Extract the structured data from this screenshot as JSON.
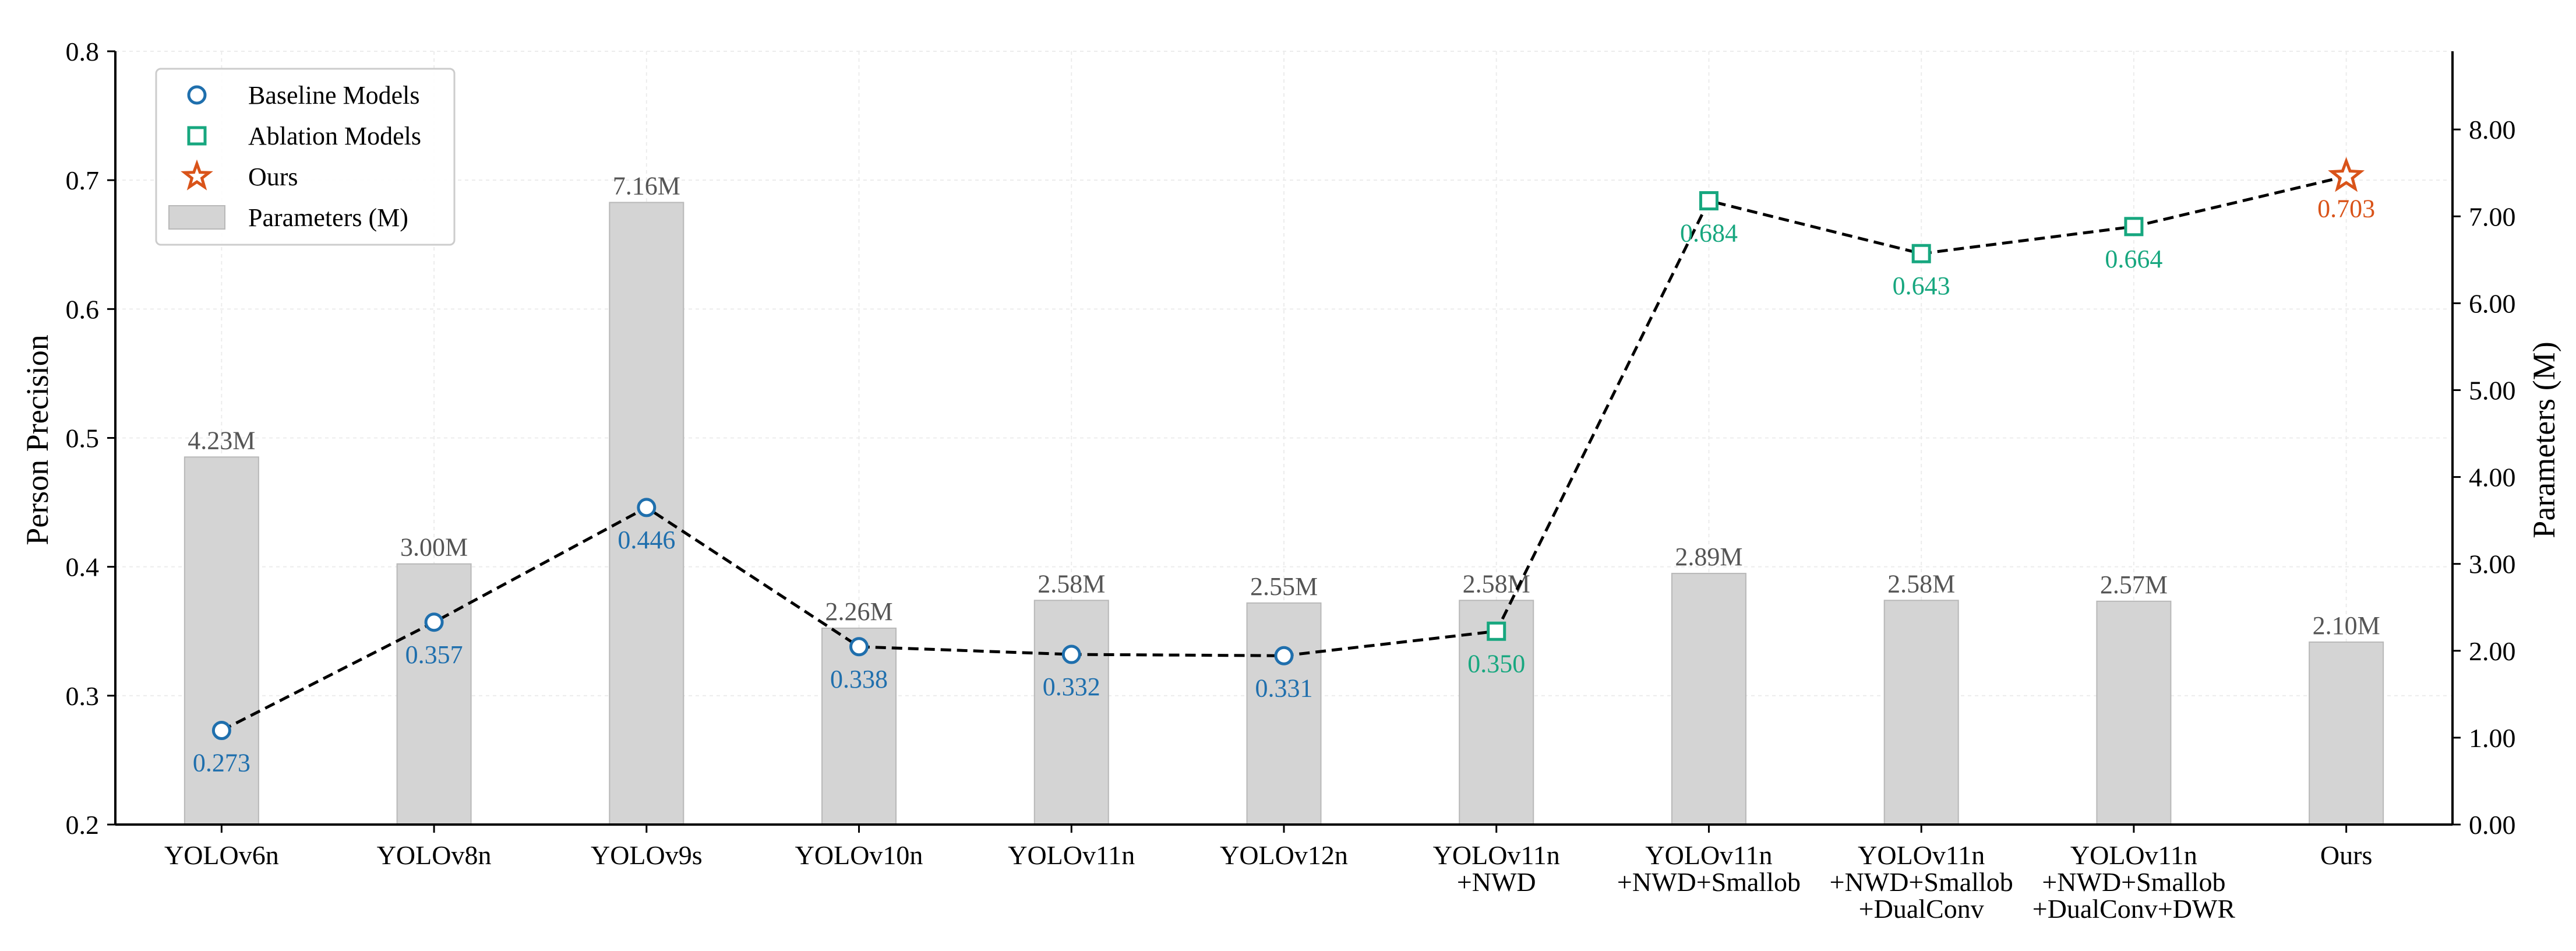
{
  "chart_data": {
    "type": "bar+line",
    "categories": [
      [
        "YOLOv6n"
      ],
      [
        "YOLOv8n"
      ],
      [
        "YOLOv9s"
      ],
      [
        "YOLOv10n"
      ],
      [
        "YOLOv11n"
      ],
      [
        "YOLOv12n"
      ],
      [
        "YOLOv11n",
        "+NWD"
      ],
      [
        "YOLOv11n",
        "+NWD+Smallob"
      ],
      [
        "YOLOv11n",
        "+NWD+Smallob",
        "+DualConv"
      ],
      [
        "YOLOv11n",
        "+NWD+Smallob",
        "+DualConv+DWR"
      ],
      [
        "Ours"
      ]
    ],
    "precision": {
      "values": [
        0.273,
        0.357,
        0.446,
        0.338,
        0.332,
        0.331,
        0.35,
        0.684,
        0.643,
        0.664,
        0.703
      ],
      "labels": [
        "0.273",
        "0.357",
        "0.446",
        "0.338",
        "0.332",
        "0.331",
        "0.350",
        "0.684",
        "0.643",
        "0.664",
        "0.703"
      ],
      "groups": [
        "baseline",
        "baseline",
        "baseline",
        "baseline",
        "baseline",
        "baseline",
        "ablation",
        "ablation",
        "ablation",
        "ablation",
        "ours"
      ]
    },
    "parameters": {
      "values": [
        4.23,
        3.0,
        7.16,
        2.26,
        2.58,
        2.55,
        2.58,
        2.89,
        2.58,
        2.57,
        2.1
      ],
      "labels": [
        "4.23M",
        "3.00M",
        "7.16M",
        "2.26M",
        "2.58M",
        "2.55M",
        "2.58M",
        "2.89M",
        "2.58M",
        "2.57M",
        "2.10M"
      ]
    },
    "ylabel_left": "Person Precision",
    "ylabel_right": "Parameters (M)",
    "ylim_left": [
      0.2,
      0.8
    ],
    "yticks_left": [
      "0.2",
      "0.3",
      "0.4",
      "0.5",
      "0.6",
      "0.7",
      "0.8"
    ],
    "ylim_right": [
      0,
      8.9
    ],
    "yticks_right": [
      "0.00",
      "1.00",
      "2.00",
      "3.00",
      "4.00",
      "5.00",
      "6.00",
      "7.00",
      "8.00"
    ],
    "grid": true,
    "legend_position": "top-left",
    "legend": [
      {
        "key": "baseline",
        "label": "Baseline Models",
        "marker": "circle"
      },
      {
        "key": "ablation",
        "label": "Ablation Models",
        "marker": "square"
      },
      {
        "key": "ours",
        "label": "Ours",
        "marker": "star"
      },
      {
        "key": "params",
        "label": "Parameters (M)",
        "marker": "bar"
      }
    ],
    "colors": {
      "baseline": "#1f6fad",
      "ablation": "#17a77f",
      "ours": "#d95319",
      "bar_fill": "#d4d4d4",
      "bar_edge": "#b8b8b8",
      "line": "#000000",
      "bar_label": "#555555"
    }
  }
}
